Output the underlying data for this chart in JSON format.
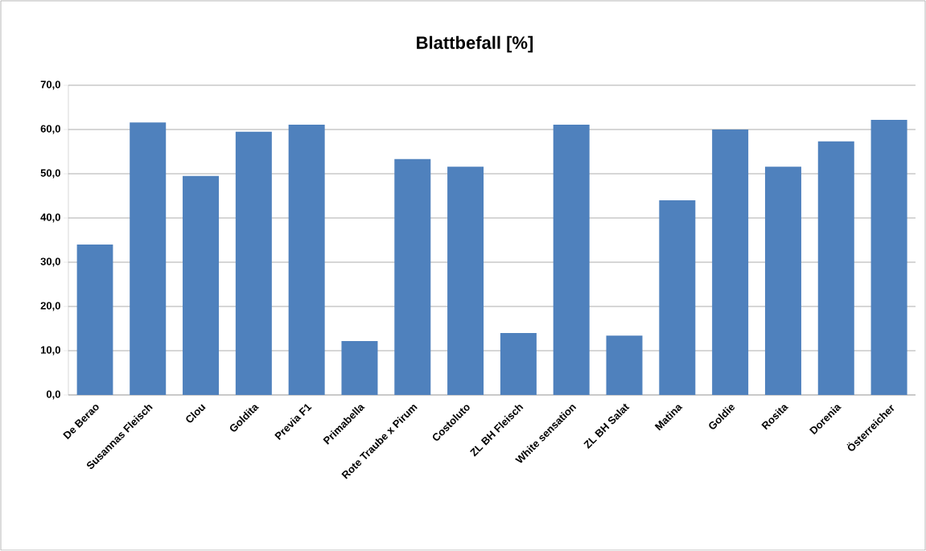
{
  "chart_data": {
    "type": "bar",
    "title": "Blattbefall [%]",
    "categories": [
      "De Berao",
      "Susannas Fleisch",
      "Clou",
      "Goldita",
      "Previa F1",
      "Primabella",
      "Rote Traube x Pirum",
      "Costoluto",
      "ZL BH Fleisch",
      "White sensation",
      "ZL BH Salat",
      "Matina",
      "Goldie",
      "Rosita",
      "Dorenia",
      "Österreicher"
    ],
    "values": [
      34.0,
      61.6,
      49.5,
      59.5,
      61.1,
      12.2,
      53.3,
      51.6,
      14.0,
      61.1,
      13.4,
      44.0,
      60.0,
      51.6,
      57.3,
      62.2
    ],
    "color": "#4f81bd",
    "ylim": [
      0,
      70
    ],
    "yticks": [
      {
        "value": 0,
        "label": "0,0"
      },
      {
        "value": 10,
        "label": "10,0"
      },
      {
        "value": 20,
        "label": "20,0"
      },
      {
        "value": 30,
        "label": "30,0"
      },
      {
        "value": 40,
        "label": "40,0"
      },
      {
        "value": 50,
        "label": "50,0"
      },
      {
        "value": 60,
        "label": "60,0"
      },
      {
        "value": 70,
        "label": "70,0"
      }
    ],
    "grid": "y"
  }
}
